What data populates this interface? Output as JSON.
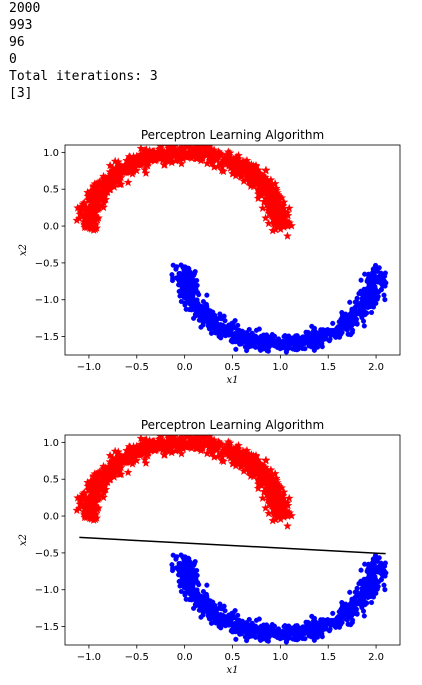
{
  "output_lines": [
    "2000",
    "993",
    "96",
    "0",
    "Total iterations: 3",
    "[3]"
  ],
  "colors": {
    "class_pos": "#ff0000",
    "class_neg": "#0000ff",
    "line": "#000000"
  },
  "chart_data": [
    {
      "type": "scatter",
      "title": "Perceptron Learning Algorithm",
      "xlabel": "x1",
      "ylabel": "x2",
      "xlim": [
        -1.25,
        2.25
      ],
      "ylim": [
        -1.75,
        1.1
      ],
      "xticks": [
        -1.0,
        -0.5,
        0.0,
        0.5,
        1.0,
        1.5,
        2.0
      ],
      "xtick_labels": [
        "−1.0",
        "−0.5",
        "0.0",
        "0.5",
        "1.0",
        "1.5",
        "2.0"
      ],
      "yticks": [
        1.0,
        0.5,
        0.0,
        -0.5,
        -1.0,
        -1.5
      ],
      "ytick_labels": [
        "1.0",
        "0.5",
        "0.0",
        "−0.5",
        "−1.0",
        "−1.5"
      ],
      "series": [
        {
          "marker": "star",
          "color": "#ff0000",
          "shape": "upper-half-moon",
          "center": [
            0,
            0
          ],
          "radius": 1.0,
          "noise": 0.1,
          "count": 1000
        },
        {
          "marker": "dot",
          "color": "#0000ff",
          "shape": "lower-half-moon",
          "center": [
            1,
            -0.6
          ],
          "radius": 1.0,
          "noise": 0.1,
          "count": 1000
        }
      ],
      "decision_line": null
    },
    {
      "type": "scatter",
      "title": "Perceptron Learning Algorithm",
      "xlabel": "x1",
      "ylabel": "x2",
      "xlim": [
        -1.25,
        2.25
      ],
      "ylim": [
        -1.75,
        1.1
      ],
      "xticks": [
        -1.0,
        -0.5,
        0.0,
        0.5,
        1.0,
        1.5,
        2.0
      ],
      "xtick_labels": [
        "−1.0",
        "−0.5",
        "0.0",
        "0.5",
        "1.0",
        "1.5",
        "2.0"
      ],
      "yticks": [
        1.0,
        0.5,
        0.0,
        -0.5,
        -1.0,
        -1.5
      ],
      "ytick_labels": [
        "1.0",
        "0.5",
        "0.0",
        "−0.5",
        "−1.0",
        "−1.5"
      ],
      "series": [
        {
          "marker": "star",
          "color": "#ff0000",
          "shape": "upper-half-moon",
          "center": [
            0,
            0
          ],
          "radius": 1.0,
          "noise": 0.1,
          "count": 1000
        },
        {
          "marker": "dot",
          "color": "#0000ff",
          "shape": "lower-half-moon",
          "center": [
            1,
            -0.6
          ],
          "radius": 1.0,
          "noise": 0.1,
          "count": 1000
        }
      ],
      "decision_line": {
        "color": "#000000",
        "x": [
          -1.1,
          2.1
        ],
        "y": [
          -0.29,
          -0.51
        ]
      }
    }
  ]
}
